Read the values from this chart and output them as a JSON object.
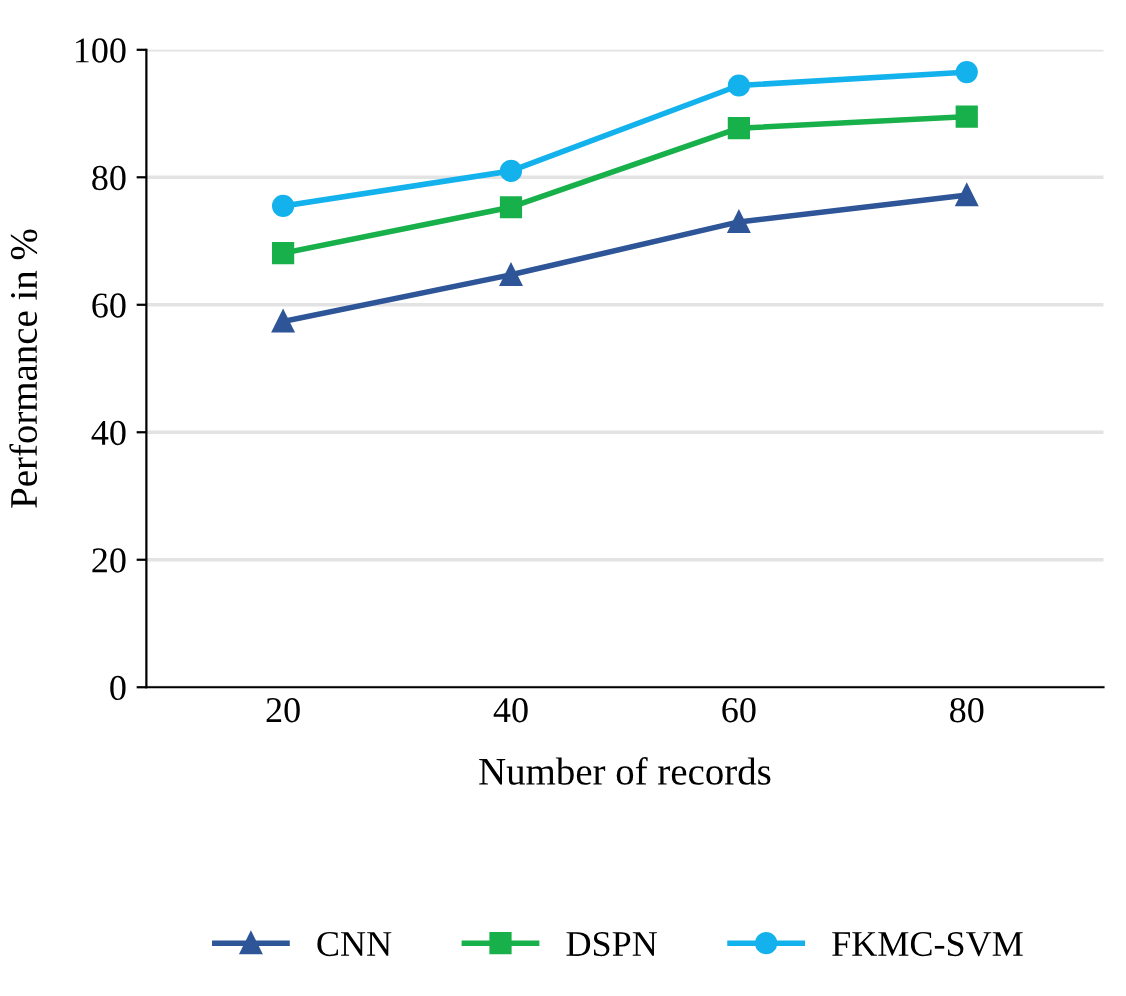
{
  "chart_data": {
    "type": "line",
    "xlabel": "Number of records",
    "ylabel": "Performance in %",
    "categories": [
      "20",
      "40",
      "60",
      "80"
    ],
    "series": [
      {
        "name": "CNN",
        "color": "#2e5597",
        "marker": "triangle",
        "values": [
          57.4,
          64.7,
          73.0,
          77.2
        ]
      },
      {
        "name": "DSPN",
        "color": "#18b04a",
        "marker": "square",
        "values": [
          68.1,
          75.3,
          87.7,
          89.5
        ]
      },
      {
        "name": "FKMC-SVM",
        "color": "#14b2ec",
        "marker": "circle",
        "values": [
          75.5,
          81.0,
          94.4,
          96.5
        ]
      }
    ],
    "ylim": [
      0,
      100
    ],
    "yticks": [
      0,
      20,
      40,
      60,
      80,
      100
    ],
    "grid": "y",
    "legend": "bottom"
  }
}
